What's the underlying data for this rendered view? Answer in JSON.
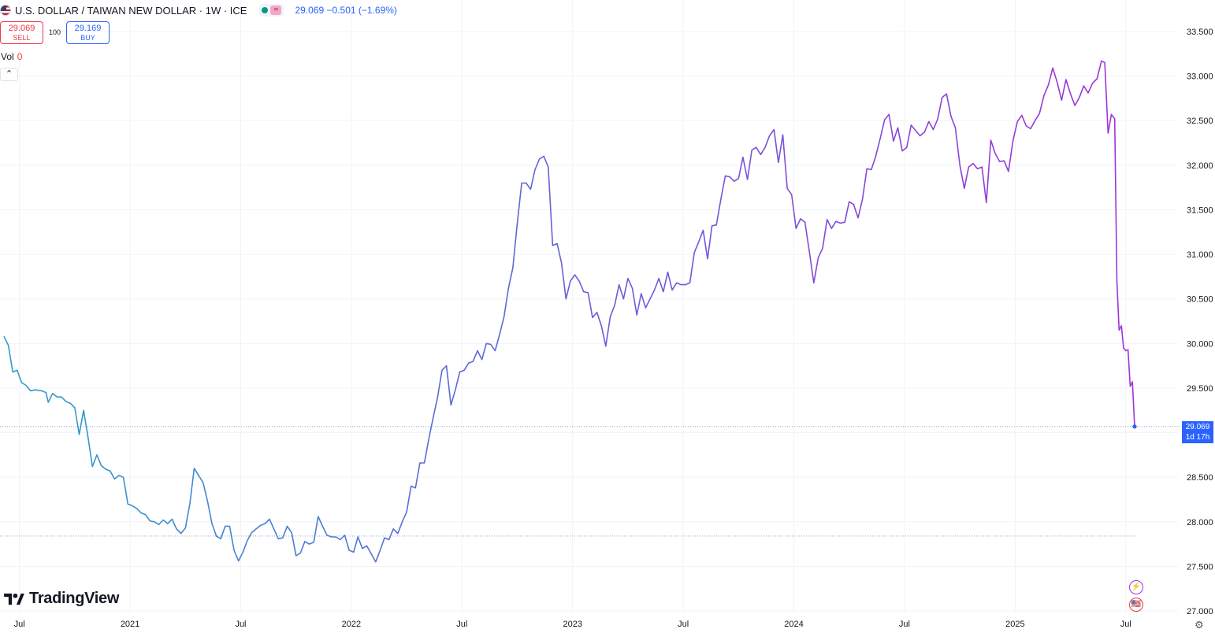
{
  "header": {
    "symbol_title": "U.S. DOLLAR / TAIWAN NEW DOLLAR · 1W · ICE",
    "quote": "29.069 −0.501 (−1.69%)",
    "status_glyph": "≈"
  },
  "trade": {
    "sell_price": "29.069",
    "sell_label": "SELL",
    "spread": "100",
    "buy_price": "29.169",
    "buy_label": "BUY"
  },
  "volume": {
    "label": "Vol",
    "value": "0"
  },
  "collapse_glyph": "⌃",
  "brand": "TradingView",
  "price_tag": {
    "price": "29.069",
    "countdown": "1d 17h"
  },
  "side_icons": {
    "lightning": "⚡",
    "flag": "🇺🇸"
  },
  "colors": {
    "gradient_start": "#2e9fcb",
    "gradient_mid": "#5b6bd6",
    "gradient_end": "#a033d8",
    "grid": "#f0f3fa",
    "axis_text": "#131722",
    "accent": "#2962ff"
  },
  "chart_data": {
    "type": "line",
    "title": "U.S. DOLLAR / TAIWAN NEW DOLLAR · 1W · ICE",
    "xlabel": "",
    "ylabel": "",
    "ylim": [
      27.0,
      33.6
    ],
    "y_ticks": [
      "33.500",
      "33.000",
      "32.500",
      "32.000",
      "31.500",
      "31.000",
      "30.500",
      "30.000",
      "29.500",
      "29.000",
      "28.500",
      "28.000",
      "27.500",
      "27.000"
    ],
    "y_tick_values": [
      33.5,
      33.0,
      32.5,
      32.0,
      31.5,
      31.0,
      30.5,
      30.0,
      29.5,
      29.0,
      28.5,
      28.0,
      27.5,
      27.0
    ],
    "x_ticks": [
      {
        "label": "Jul",
        "t": 2020.5
      },
      {
        "label": "2021",
        "t": 2021.0
      },
      {
        "label": "Jul",
        "t": 2021.5
      },
      {
        "label": "2022",
        "t": 2022.0
      },
      {
        "label": "Jul",
        "t": 2022.5
      },
      {
        "label": "2023",
        "t": 2023.0
      },
      {
        "label": "Jul",
        "t": 2023.5
      },
      {
        "label": "2024",
        "t": 2024.0
      },
      {
        "label": "Jul",
        "t": 2024.5
      },
      {
        "label": "2025",
        "t": 2025.0
      },
      {
        "label": "Jul",
        "t": 2025.5
      }
    ],
    "x_range": [
      2020.43,
      2025.5
    ],
    "reference_line": 27.84,
    "last_value": 29.069,
    "series": [
      {
        "values": [
          [
            2020.43,
            30.08
          ],
          [
            2020.45,
            29.98
          ],
          [
            2020.47,
            29.68
          ],
          [
            2020.49,
            29.7
          ],
          [
            2020.51,
            29.56
          ],
          [
            2020.53,
            29.53
          ],
          [
            2020.55,
            29.47
          ],
          [
            2020.57,
            29.48
          ],
          [
            2020.6,
            29.47
          ],
          [
            2020.62,
            29.45
          ],
          [
            2020.63,
            29.34
          ],
          [
            2020.65,
            29.44
          ],
          [
            2020.67,
            29.4
          ],
          [
            2020.69,
            29.4
          ],
          [
            2020.71,
            29.35
          ],
          [
            2020.73,
            29.33
          ],
          [
            2020.75,
            29.28
          ],
          [
            2020.77,
            28.98
          ],
          [
            2020.79,
            29.25
          ],
          [
            2020.81,
            28.95
          ],
          [
            2020.83,
            28.62
          ],
          [
            2020.85,
            28.75
          ],
          [
            2020.87,
            28.63
          ],
          [
            2020.89,
            28.59
          ],
          [
            2020.91,
            28.57
          ],
          [
            2020.93,
            28.48
          ],
          [
            2020.95,
            28.52
          ],
          [
            2020.97,
            28.5
          ],
          [
            2020.99,
            28.2
          ],
          [
            2021.01,
            28.18
          ],
          [
            2021.03,
            28.15
          ],
          [
            2021.05,
            28.1
          ],
          [
            2021.07,
            28.08
          ],
          [
            2021.09,
            28.01
          ],
          [
            2021.11,
            28.0
          ],
          [
            2021.13,
            27.97
          ],
          [
            2021.15,
            28.02
          ],
          [
            2021.17,
            27.98
          ],
          [
            2021.19,
            28.03
          ],
          [
            2021.21,
            27.92
          ],
          [
            2021.23,
            27.87
          ],
          [
            2021.25,
            27.93
          ],
          [
            2021.27,
            28.2
          ],
          [
            2021.29,
            28.6
          ],
          [
            2021.31,
            28.52
          ],
          [
            2021.33,
            28.44
          ],
          [
            2021.35,
            28.23
          ],
          [
            2021.37,
            27.98
          ],
          [
            2021.39,
            27.84
          ],
          [
            2021.41,
            27.81
          ],
          [
            2021.43,
            27.95
          ],
          [
            2021.45,
            27.95
          ],
          [
            2021.47,
            27.68
          ],
          [
            2021.49,
            27.56
          ],
          [
            2021.51,
            27.66
          ],
          [
            2021.53,
            27.79
          ],
          [
            2021.55,
            27.88
          ],
          [
            2021.57,
            27.92
          ],
          [
            2021.59,
            27.96
          ],
          [
            2021.61,
            27.98
          ],
          [
            2021.63,
            28.03
          ],
          [
            2021.65,
            27.92
          ],
          [
            2021.67,
            27.81
          ],
          [
            2021.69,
            27.82
          ],
          [
            2021.71,
            27.95
          ],
          [
            2021.73,
            27.88
          ],
          [
            2021.75,
            27.62
          ],
          [
            2021.77,
            27.65
          ],
          [
            2021.79,
            27.78
          ],
          [
            2021.81,
            27.75
          ],
          [
            2021.83,
            27.77
          ],
          [
            2021.85,
            28.06
          ],
          [
            2021.87,
            27.95
          ],
          [
            2021.89,
            27.85
          ],
          [
            2021.91,
            27.83
          ],
          [
            2021.93,
            27.83
          ],
          [
            2021.95,
            27.8
          ],
          [
            2021.97,
            27.85
          ],
          [
            2021.99,
            27.68
          ],
          [
            2022.01,
            27.66
          ],
          [
            2022.03,
            27.83
          ],
          [
            2022.05,
            27.7
          ],
          [
            2022.07,
            27.73
          ],
          [
            2022.09,
            27.64
          ],
          [
            2022.11,
            27.55
          ],
          [
            2022.13,
            27.68
          ],
          [
            2022.15,
            27.82
          ],
          [
            2022.17,
            27.8
          ],
          [
            2022.19,
            27.92
          ],
          [
            2022.21,
            27.87
          ],
          [
            2022.23,
            28.0
          ],
          [
            2022.25,
            28.11
          ],
          [
            2022.27,
            28.4
          ],
          [
            2022.29,
            28.38
          ],
          [
            2022.31,
            28.66
          ],
          [
            2022.33,
            28.66
          ],
          [
            2022.35,
            28.93
          ],
          [
            2022.37,
            29.17
          ],
          [
            2022.39,
            29.4
          ],
          [
            2022.41,
            29.7
          ],
          [
            2022.43,
            29.75
          ],
          [
            2022.45,
            29.31
          ],
          [
            2022.47,
            29.48
          ],
          [
            2022.49,
            29.68
          ],
          [
            2022.51,
            29.7
          ],
          [
            2022.53,
            29.78
          ],
          [
            2022.55,
            29.8
          ],
          [
            2022.57,
            29.92
          ],
          [
            2022.59,
            29.82
          ],
          [
            2022.61,
            30.0
          ],
          [
            2022.63,
            29.99
          ],
          [
            2022.65,
            29.92
          ],
          [
            2022.67,
            30.1
          ],
          [
            2022.69,
            30.3
          ],
          [
            2022.71,
            30.62
          ],
          [
            2022.73,
            30.85
          ],
          [
            2022.75,
            31.35
          ],
          [
            2022.77,
            31.8
          ],
          [
            2022.79,
            31.8
          ],
          [
            2022.81,
            31.73
          ],
          [
            2022.83,
            31.95
          ],
          [
            2022.85,
            32.07
          ],
          [
            2022.87,
            32.1
          ],
          [
            2022.89,
            31.98
          ],
          [
            2022.91,
            31.1
          ],
          [
            2022.93,
            31.12
          ],
          [
            2022.95,
            30.9
          ],
          [
            2022.97,
            30.5
          ],
          [
            2022.99,
            30.7
          ],
          [
            2023.01,
            30.77
          ],
          [
            2023.03,
            30.7
          ],
          [
            2023.05,
            30.58
          ],
          [
            2023.07,
            30.57
          ],
          [
            2023.09,
            30.29
          ],
          [
            2023.11,
            30.35
          ],
          [
            2023.13,
            30.2
          ],
          [
            2023.15,
            29.97
          ],
          [
            2023.17,
            30.3
          ],
          [
            2023.19,
            30.43
          ],
          [
            2023.21,
            30.66
          ],
          [
            2023.23,
            30.5
          ],
          [
            2023.25,
            30.73
          ],
          [
            2023.27,
            30.62
          ],
          [
            2023.29,
            30.32
          ],
          [
            2023.31,
            30.56
          ],
          [
            2023.33,
            30.4
          ],
          [
            2023.35,
            30.5
          ],
          [
            2023.37,
            30.6
          ],
          [
            2023.39,
            30.73
          ],
          [
            2023.41,
            30.58
          ],
          [
            2023.43,
            30.8
          ],
          [
            2023.45,
            30.6
          ],
          [
            2023.47,
            30.68
          ],
          [
            2023.49,
            30.66
          ],
          [
            2023.51,
            30.66
          ],
          [
            2023.53,
            30.68
          ],
          [
            2023.55,
            31.02
          ],
          [
            2023.57,
            31.14
          ],
          [
            2023.59,
            31.27
          ],
          [
            2023.61,
            30.95
          ],
          [
            2023.63,
            31.32
          ],
          [
            2023.65,
            31.33
          ],
          [
            2023.67,
            31.62
          ],
          [
            2023.69,
            31.88
          ],
          [
            2023.71,
            31.87
          ],
          [
            2023.73,
            31.82
          ],
          [
            2023.75,
            31.85
          ],
          [
            2023.77,
            32.09
          ],
          [
            2023.79,
            31.84
          ],
          [
            2023.81,
            32.17
          ],
          [
            2023.83,
            32.2
          ],
          [
            2023.85,
            32.12
          ],
          [
            2023.87,
            32.2
          ],
          [
            2023.89,
            32.33
          ],
          [
            2023.91,
            32.4
          ],
          [
            2023.93,
            32.03
          ],
          [
            2023.95,
            32.34
          ],
          [
            2023.97,
            31.74
          ],
          [
            2023.99,
            31.67
          ],
          [
            2024.01,
            31.29
          ],
          [
            2024.03,
            31.4
          ],
          [
            2024.05,
            31.36
          ],
          [
            2024.07,
            31.03
          ],
          [
            2024.09,
            30.68
          ],
          [
            2024.11,
            30.96
          ],
          [
            2024.13,
            31.07
          ],
          [
            2024.15,
            31.39
          ],
          [
            2024.17,
            31.29
          ],
          [
            2024.19,
            31.37
          ],
          [
            2024.21,
            31.35
          ],
          [
            2024.23,
            31.36
          ],
          [
            2024.25,
            31.59
          ],
          [
            2024.27,
            31.56
          ],
          [
            2024.29,
            31.41
          ],
          [
            2024.31,
            31.62
          ],
          [
            2024.33,
            31.96
          ],
          [
            2024.35,
            31.95
          ],
          [
            2024.37,
            32.1
          ],
          [
            2024.39,
            32.3
          ],
          [
            2024.41,
            32.51
          ],
          [
            2024.43,
            32.57
          ],
          [
            2024.45,
            32.27
          ],
          [
            2024.47,
            32.42
          ],
          [
            2024.49,
            32.16
          ],
          [
            2024.51,
            32.2
          ],
          [
            2024.53,
            32.45
          ],
          [
            2024.55,
            32.39
          ],
          [
            2024.57,
            32.33
          ],
          [
            2024.59,
            32.37
          ],
          [
            2024.61,
            32.49
          ],
          [
            2024.63,
            32.4
          ],
          [
            2024.65,
            32.52
          ],
          [
            2024.67,
            32.76
          ],
          [
            2024.69,
            32.8
          ],
          [
            2024.71,
            32.55
          ],
          [
            2024.73,
            32.42
          ],
          [
            2024.75,
            32.0
          ],
          [
            2024.77,
            31.74
          ],
          [
            2024.79,
            31.98
          ],
          [
            2024.81,
            32.02
          ],
          [
            2024.83,
            31.96
          ],
          [
            2024.85,
            31.98
          ],
          [
            2024.87,
            31.58
          ],
          [
            2024.89,
            32.28
          ],
          [
            2024.91,
            32.13
          ],
          [
            2024.93,
            32.04
          ],
          [
            2024.95,
            32.05
          ],
          [
            2024.97,
            31.93
          ],
          [
            2024.99,
            32.27
          ],
          [
            2025.01,
            32.49
          ],
          [
            2025.03,
            32.56
          ],
          [
            2025.05,
            32.44
          ],
          [
            2025.07,
            32.41
          ],
          [
            2025.09,
            32.5
          ],
          [
            2025.11,
            32.58
          ],
          [
            2025.13,
            32.78
          ],
          [
            2025.15,
            32.9
          ],
          [
            2025.17,
            33.09
          ],
          [
            2025.19,
            32.93
          ],
          [
            2025.21,
            32.73
          ],
          [
            2025.23,
            32.96
          ],
          [
            2025.25,
            32.8
          ],
          [
            2025.27,
            32.67
          ],
          [
            2025.29,
            32.76
          ],
          [
            2025.31,
            32.89
          ],
          [
            2025.33,
            32.81
          ],
          [
            2025.35,
            32.92
          ],
          [
            2025.37,
            32.97
          ],
          [
            2025.39,
            33.17
          ],
          [
            2025.405,
            33.15
          ],
          [
            2025.42,
            32.36
          ],
          [
            2025.435,
            32.57
          ],
          [
            2025.45,
            32.52
          ],
          [
            2025.46,
            30.7
          ],
          [
            2025.47,
            30.15
          ],
          [
            2025.48,
            30.2
          ],
          [
            2025.49,
            29.95
          ],
          [
            2025.5,
            29.92
          ],
          [
            2025.51,
            29.93
          ],
          [
            2025.52,
            29.52
          ],
          [
            2025.53,
            29.57
          ],
          [
            2025.54,
            29.069
          ]
        ]
      }
    ]
  }
}
